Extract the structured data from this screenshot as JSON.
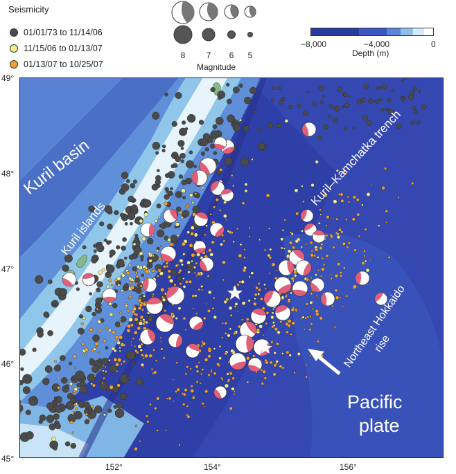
{
  "legend": {
    "title": "Seismicity",
    "items": [
      {
        "label": "01/01/73 to 11/14/06",
        "color": "#4a4a4a"
      },
      {
        "label": "11/15/06 to 01/13/07",
        "color": "#f3ea8c"
      },
      {
        "label": "01/13/07 to 10/25/07",
        "color": "#f0a030"
      }
    ]
  },
  "magnitude": {
    "title": "Magnitude",
    "values": [
      "8",
      "7",
      "6",
      "5"
    ]
  },
  "depth_scale": {
    "title": "Depth (m)",
    "ticks": [
      "−8,000",
      "−4,000",
      "0"
    ],
    "colors": [
      "#2b3a9e",
      "#3d56c4",
      "#5b86d8",
      "#8fc0ea",
      "#d6ecf8",
      "#ffffff"
    ]
  },
  "axes": {
    "lat_ticks": [
      "49°",
      "48°",
      "47°",
      "46°",
      "45°"
    ],
    "lon_ticks": [
      "152°",
      "154°",
      "156°"
    ]
  },
  "labels": {
    "kuril_basin": "Kuril basin",
    "kuril_islands": "Kuril islands",
    "trench": "Kuril–Kamchatka trench",
    "rise_line1": "Northeast Hokkaido",
    "rise_line2": "rise",
    "pacific_line1": "Pacific",
    "pacific_line2": "plate"
  },
  "colors": {
    "deep_ocean": "#2f3fa8",
    "mid_ocean": "#4c6fc9",
    "shelf": "#8fc6ea",
    "shallow": "#e8f4fb",
    "mechanism_red": "#e0607a",
    "old_events": "#4a4a4a",
    "swarm_events": "#f3ea8c",
    "aftershocks": "#f0a030"
  }
}
